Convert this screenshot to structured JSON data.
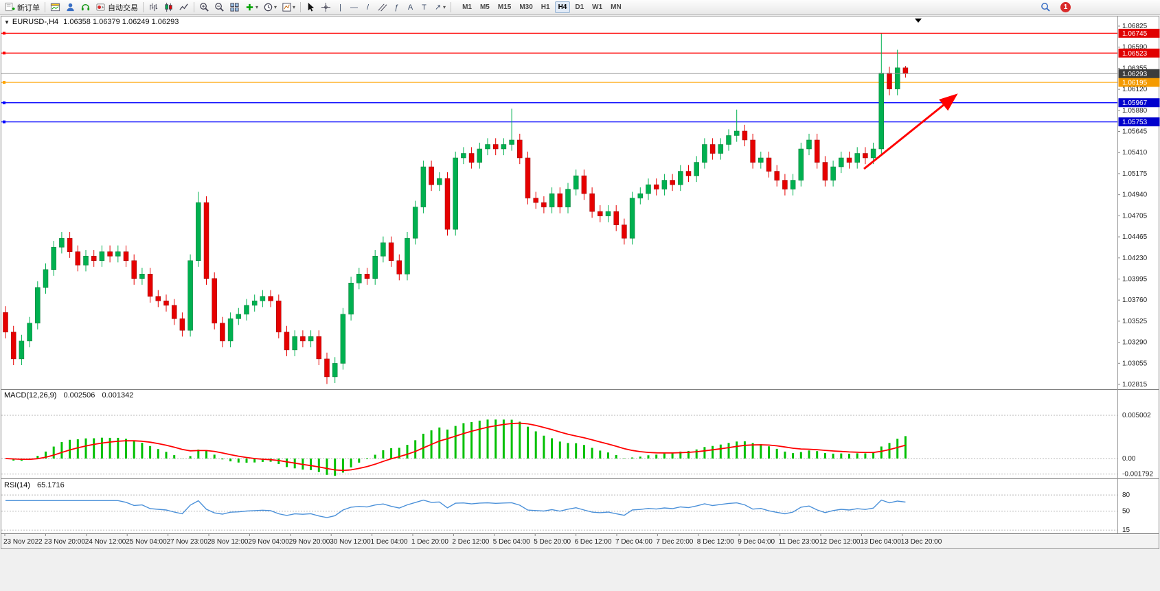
{
  "toolbar": {
    "new_order_label": "新订单",
    "auto_trading_label": "自动交易",
    "timeframes": [
      "M1",
      "M5",
      "M15",
      "M30",
      "H1",
      "H4",
      "D1",
      "W1",
      "MN"
    ],
    "active_timeframe": "H4",
    "notification_count": "1",
    "tool_labels": {
      "vertical_line": "|",
      "horizontal_line": "—",
      "trendline": "/",
      "fibonacci": "ƒ",
      "text": "A",
      "text_label": "T",
      "arrows": "↗",
      "dropdown": "▾",
      "chart_menu": "▼"
    }
  },
  "chart": {
    "title": "EURUSD-,H4",
    "ohlc_values": "1.06358 1.06379 1.06249 1.06293"
  },
  "chart_data": [
    {
      "type": "candlestick",
      "symbol": "EURUSD-",
      "timeframe": "H4",
      "open": 1.06358,
      "high": 1.06379,
      "low": 1.06249,
      "close": 1.06293,
      "up_color": "#00B050",
      "down_color": "#E60000",
      "first_open": 1.0362,
      "default_wick": 0.0007,
      "closes": [
        1.034,
        1.031,
        1.033,
        1.035,
        1.039,
        1.041,
        1.0435,
        1.0445,
        1.043,
        1.0415,
        1.0425,
        1.042,
        1.043,
        1.0425,
        1.043,
        1.042,
        1.04,
        1.0405,
        1.038,
        1.0375,
        1.037,
        1.0355,
        1.0342,
        1.042,
        1.0485,
        1.04,
        1.035,
        1.033,
        1.0355,
        1.036,
        1.037,
        1.0375,
        1.038,
        1.0375,
        1.034,
        1.032,
        1.0335,
        1.033,
        1.0335,
        1.031,
        1.029,
        1.0305,
        1.036,
        1.0395,
        1.0405,
        1.04,
        1.0425,
        1.044,
        1.042,
        1.0405,
        1.0445,
        1.048,
        1.0525,
        1.0505,
        1.0512,
        1.0455,
        1.0535,
        1.054,
        1.053,
        1.0545,
        1.055,
        1.0545,
        1.055,
        1.0555,
        1.0535,
        1.049,
        1.0485,
        1.048,
        1.0495,
        1.048,
        1.05,
        1.0515,
        1.0495,
        1.0475,
        1.047,
        1.0475,
        1.046,
        1.0445,
        1.049,
        1.0495,
        1.0505,
        1.05,
        1.051,
        1.0505,
        1.052,
        1.0515,
        1.053,
        1.055,
        1.054,
        1.055,
        1.056,
        1.0565,
        1.0555,
        1.053,
        1.0535,
        1.052,
        1.051,
        1.05,
        1.051,
        1.0545,
        1.0555,
        1.053,
        1.051,
        1.0525,
        1.0535,
        1.053,
        1.054,
        1.0535,
        1.0545,
        1.063,
        1.0612,
        1.06358,
        1.06293
      ],
      "wick_overrides": {
        "24": {
          "high": 1.0497
        },
        "40": {
          "low": 1.0282
        },
        "55": {
          "low": 1.0448
        },
        "63": {
          "high": 1.059
        },
        "91": {
          "high": 1.0589
        },
        "109": {
          "high": 1.0674,
          "low": 1.0538
        },
        "110": {
          "low": 1.0605
        },
        "111": {
          "high": 1.0656
        },
        "112": {
          "high": 1.06379,
          "low": 1.06249
        }
      },
      "y_ticks": [
        "1.06825",
        "1.06590",
        "1.06355",
        "1.06120",
        "1.05880",
        "1.05645",
        "1.05410",
        "1.05175",
        "1.04940",
        "1.04705",
        "1.04465",
        "1.04230",
        "1.03995",
        "1.03760",
        "1.03525",
        "1.03290",
        "1.03055",
        "1.02815"
      ],
      "x_labels": [
        "23 Nov 2022",
        "23 Nov 20:00",
        "24 Nov 12:00",
        "25 Nov 04:00",
        "27 Nov 23:00",
        "28 Nov 12:00",
        "29 Nov 04:00",
        "29 Nov 20:00",
        "30 Nov 12:00",
        "1 Dec 04:00",
        "1 Dec 20:00",
        "2 Dec 12:00",
        "5 Dec 04:00",
        "5 Dec 20:00",
        "6 Dec 12:00",
        "7 Dec 04:00",
        "7 Dec 20:00",
        "8 Dec 12:00",
        "9 Dec 04:00",
        "11 Dec 23:00",
        "12 Dec 12:00",
        "13 Dec 04:00",
        "13 Dec 20:00"
      ],
      "hlines": [
        {
          "price": 1.06745,
          "color": "#FF0000",
          "label": "1.06745",
          "label_bg": "#E00000"
        },
        {
          "price": 1.06523,
          "color": "#FF0000",
          "label": "1.06523",
          "label_bg": "#E00000"
        },
        {
          "price": 1.06195,
          "color": "#FFA500",
          "label": "1.06195",
          "label_bg": "#F59B00"
        },
        {
          "price": 1.05967,
          "color": "#0000FF",
          "label": "1.05967",
          "label_bg": "#0000CD"
        },
        {
          "price": 1.05753,
          "color": "#0000FF",
          "label": "1.05753",
          "label_bg": "#0000CD"
        }
      ],
      "current_price": {
        "value": 1.06293,
        "label": "1.06293",
        "line_color": "#9a9a9a",
        "label_bg": "#3C3C3C"
      },
      "annotation_arrow": {
        "shape": "trend-arrow",
        "direction": "up-right",
        "color": "#FF0000"
      }
    },
    {
      "type": "macd_histogram",
      "label": "MACD(12,26,9)",
      "main_value": "0.002506",
      "signal_value": "0.001342",
      "fast": 12,
      "slow": 26,
      "signal": 9,
      "y_ticks": [
        "0.005002",
        "0.00",
        "-0.001792"
      ],
      "histogram_color": "#00C000",
      "signal_color": "#FF0000"
    },
    {
      "type": "rsi_line",
      "label": "RSI(14)",
      "value": "65.1716",
      "period": 14,
      "levels": [
        80,
        50,
        15
      ],
      "y_ticks": [
        "80",
        "50",
        "15"
      ],
      "line_color": "#4A90D9"
    }
  ]
}
